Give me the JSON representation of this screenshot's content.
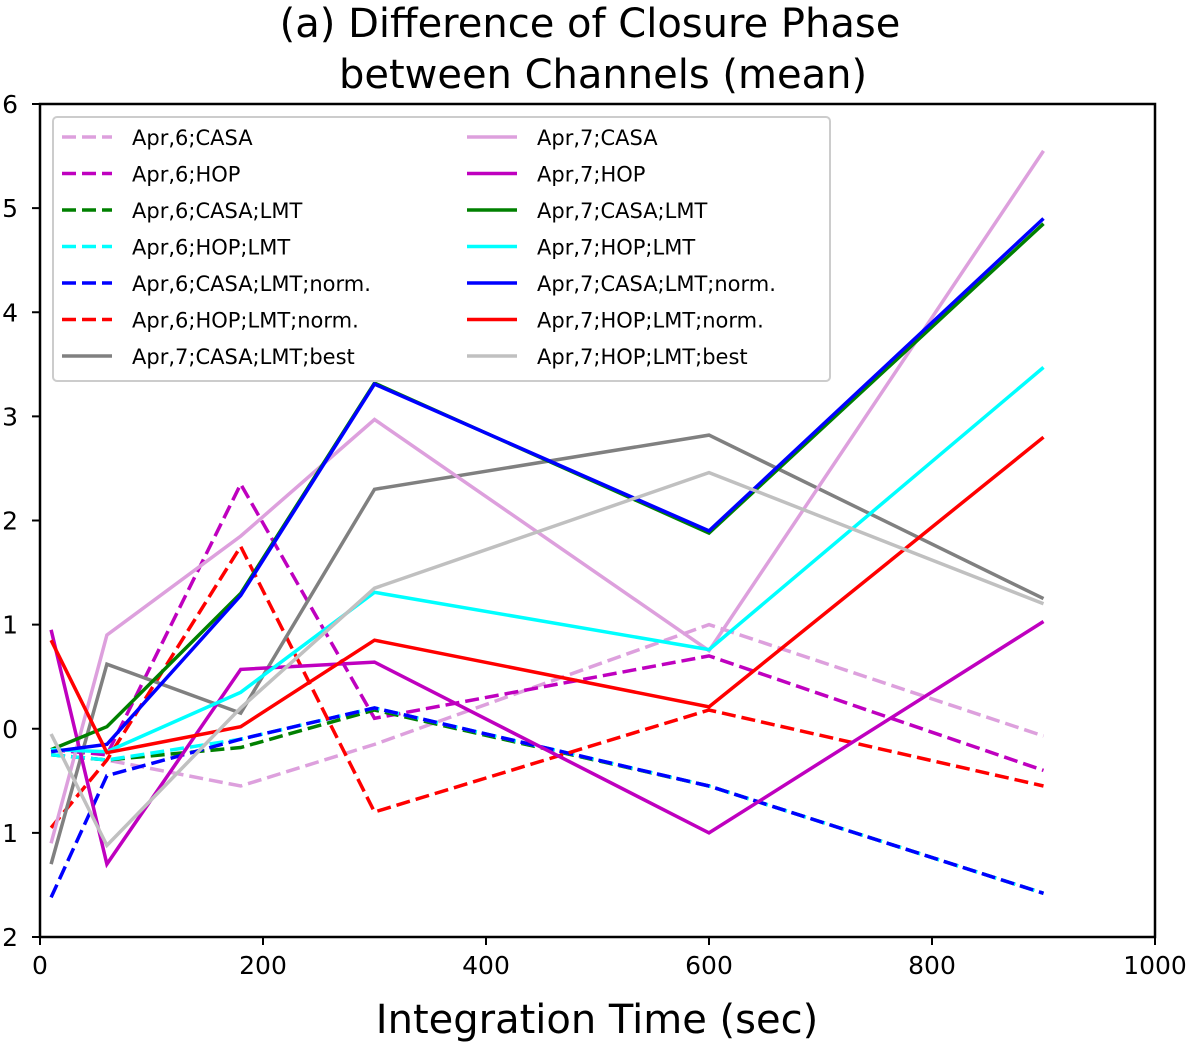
{
  "chart_data": {
    "type": "line",
    "title": "(a) Difference of Closure Phase between Channels (mean)",
    "title_lines": [
      "(a) Difference of Closure Phase",
      "between Channels (mean)"
    ],
    "xlabel": "Integration Time (sec)",
    "ylabel": "",
    "xlim": [
      0,
      1000
    ],
    "ylim": [
      -2,
      6
    ],
    "xticks": [
      0,
      200,
      400,
      600,
      800,
      1000
    ],
    "yticks": [
      -2,
      -1,
      0,
      1,
      2,
      3,
      4,
      5,
      6
    ],
    "ytick_labels": [
      "2",
      "1",
      "0",
      "1",
      "2",
      "3",
      "4",
      "5",
      "6"
    ],
    "x": [
      10,
      60,
      180,
      300,
      600,
      900
    ],
    "legend_position": "upper-left",
    "series": [
      {
        "name": "Apr,6;CASA",
        "color": "#dda0dd",
        "style": "dashed",
        "values": [
          -0.25,
          -0.3,
          -0.55,
          -0.15,
          1.0,
          -0.07
        ]
      },
      {
        "name": "Apr,6;HOP",
        "color": "#bf00bf",
        "style": "dashed",
        "values": [
          -0.2,
          -0.25,
          2.35,
          0.1,
          0.7,
          -0.4
        ]
      },
      {
        "name": "Apr,6;CASA;LMT",
        "color": "#008000",
        "style": "dashed",
        "values": [
          -0.25,
          -0.3,
          -0.18,
          0.18,
          -0.55,
          -1.58
        ]
      },
      {
        "name": "Apr,6;HOP;LMT",
        "color": "#00ffff",
        "style": "dashed",
        "values": [
          -0.25,
          -0.3,
          -0.1,
          0.2,
          -0.55,
          -1.58
        ]
      },
      {
        "name": "Apr,6;CASA;LMT;norm.",
        "color": "#0000ff",
        "style": "dashed",
        "values": [
          -1.62,
          -0.45,
          -0.1,
          0.2,
          -0.55,
          -1.58
        ]
      },
      {
        "name": "Apr,6;HOP;LMT;norm.",
        "color": "#ff0000",
        "style": "dashed",
        "values": [
          -0.95,
          -0.3,
          1.75,
          -0.8,
          0.18,
          -0.55
        ]
      },
      {
        "name": "Apr,7;CASA;LMT;best",
        "color": "#808080",
        "style": "solid",
        "values": [
          -1.3,
          0.62,
          0.15,
          2.3,
          2.82,
          1.25
        ]
      },
      {
        "name": "Apr,7;CASA",
        "color": "#dda0dd",
        "style": "solid",
        "values": [
          -1.1,
          0.9,
          1.85,
          2.97,
          0.75,
          5.55
        ]
      },
      {
        "name": "Apr,7;HOP",
        "color": "#bf00bf",
        "style": "solid",
        "values": [
          0.95,
          -1.3,
          0.57,
          0.64,
          -1.0,
          1.03
        ]
      },
      {
        "name": "Apr,7;CASA;LMT",
        "color": "#008000",
        "style": "solid",
        "values": [
          -0.2,
          0.02,
          1.3,
          3.32,
          1.88,
          4.85
        ]
      },
      {
        "name": "Apr,7;HOP;LMT",
        "color": "#00ffff",
        "style": "solid",
        "values": [
          -0.2,
          -0.22,
          0.35,
          1.31,
          0.76,
          3.47
        ]
      },
      {
        "name": "Apr,7;CASA;LMT;norm.",
        "color": "#0000ff",
        "style": "solid",
        "values": [
          -0.22,
          -0.15,
          1.28,
          3.31,
          1.9,
          4.9
        ]
      },
      {
        "name": "Apr,7;HOP;LMT;norm.",
        "color": "#ff0000",
        "style": "solid",
        "values": [
          0.85,
          -0.23,
          0.02,
          0.85,
          0.21,
          2.8
        ]
      },
      {
        "name": "Apr,7;HOP;LMT;best",
        "color": "#c0c0c0",
        "style": "solid",
        "values": [
          -0.05,
          -1.12,
          0.2,
          1.35,
          2.46,
          1.2
        ]
      }
    ],
    "legend_order": [
      "Apr,6;CASA",
      "Apr,6;HOP",
      "Apr,6;CASA;LMT",
      "Apr,6;HOP;LMT",
      "Apr,6;CASA;LMT;norm.",
      "Apr,6;HOP;LMT;norm.",
      "Apr,7;CASA;LMT;best",
      "Apr,7;CASA",
      "Apr,7;HOP",
      "Apr,7;CASA;LMT",
      "Apr,7;HOP;LMT",
      "Apr,7;CASA;LMT;norm.",
      "Apr,7;HOP;LMT;norm.",
      "Apr,7;HOP;LMT;best"
    ]
  }
}
